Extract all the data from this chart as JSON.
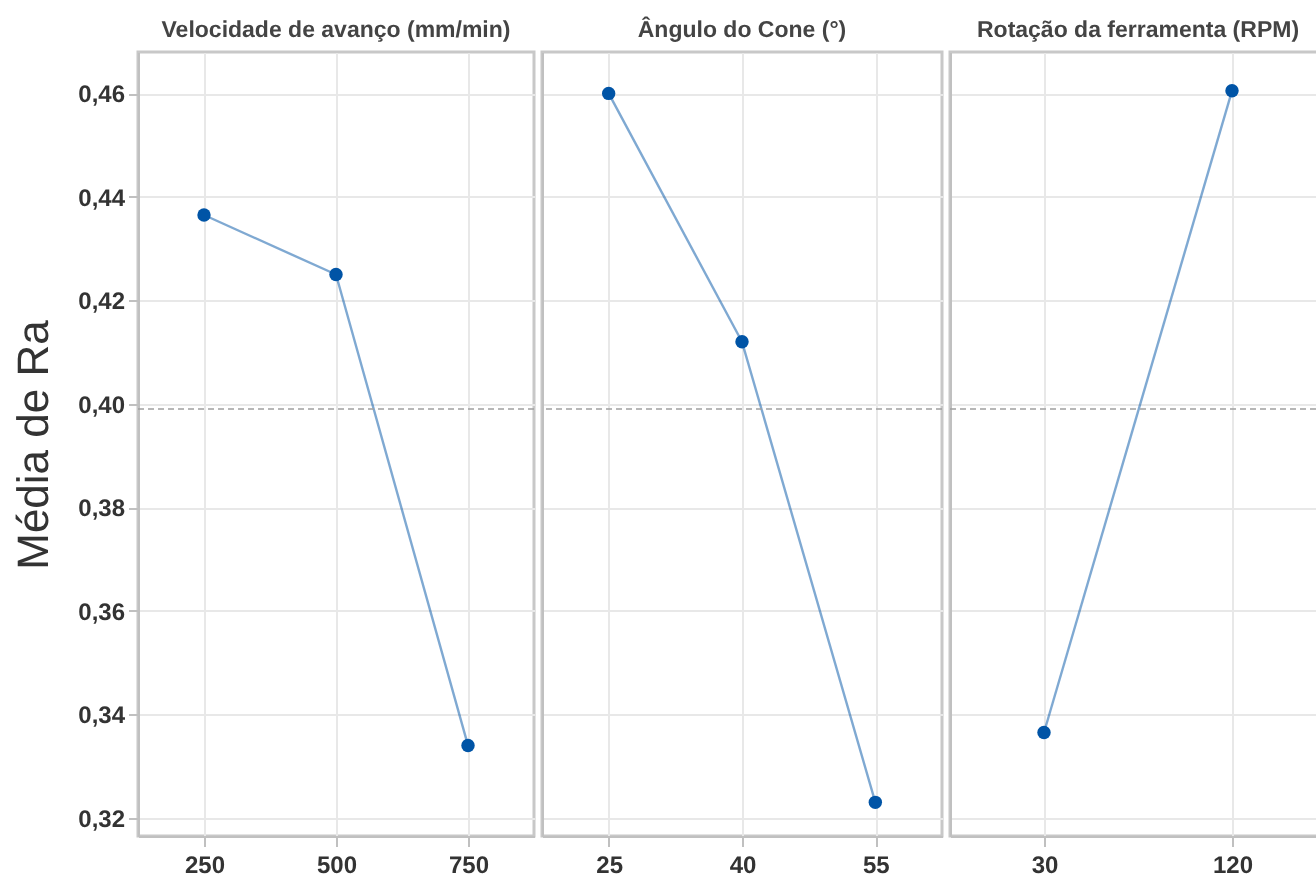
{
  "chart_data": [
    {
      "type": "line",
      "title": "Velocidade de avanço (mm/min)",
      "ylabel": "Média de Ra",
      "categories": [
        "250",
        "500",
        "750"
      ],
      "series": [
        {
          "color": "#0054a6",
          "values": [
            0.4365,
            0.425,
            0.334
          ]
        }
      ],
      "ylim": [
        0.3165,
        0.468
      ],
      "yticks": [
        {
          "value": 0.32,
          "label": "0,32"
        },
        {
          "value": 0.34,
          "label": "0,34"
        },
        {
          "value": 0.36,
          "label": "0,36"
        },
        {
          "value": 0.38,
          "label": "0,38"
        },
        {
          "value": 0.4,
          "label": "0,40"
        },
        {
          "value": 0.42,
          "label": "0,42"
        },
        {
          "value": 0.44,
          "label": "0,44"
        },
        {
          "value": 0.46,
          "label": "0,46"
        }
      ],
      "ref_lines": [
        {
          "axis": "y",
          "value": 0.399,
          "color": "#a0a0a0",
          "line_style": "dashed"
        }
      ],
      "grid": true,
      "marker": "circle"
    },
    {
      "type": "line",
      "title": "Ângulo do Cone (°)",
      "categories": [
        "25",
        "40",
        "55"
      ],
      "series": [
        {
          "color": "#0054a6",
          "values": [
            0.46,
            0.412,
            0.323
          ]
        }
      ],
      "ylim": [
        0.3165,
        0.468
      ],
      "yticks": [
        {
          "value": 0.32,
          "label": null
        },
        {
          "value": 0.34,
          "label": null
        },
        {
          "value": 0.36,
          "label": null
        },
        {
          "value": 0.38,
          "label": null
        },
        {
          "value": 0.4,
          "label": null
        },
        {
          "value": 0.42,
          "label": null
        },
        {
          "value": 0.44,
          "label": null
        },
        {
          "value": 0.46,
          "label": null
        }
      ],
      "tick_labels": "x",
      "ref_lines": [
        {
          "axis": "y",
          "value": 0.399,
          "color": "#a0a0a0",
          "line_style": "dashed"
        }
      ],
      "grid": true,
      "marker": "circle"
    },
    {
      "type": "line",
      "title": "Rotação da ferramenta (RPM)",
      "categories": [
        "30",
        "120"
      ],
      "series": [
        {
          "color": "#0054a6",
          "values": [
            0.3365,
            0.4605
          ]
        }
      ],
      "ylim": [
        0.3165,
        0.468
      ],
      "yticks": [
        {
          "value": 0.32,
          "label": null
        },
        {
          "value": 0.34,
          "label": null
        },
        {
          "value": 0.36,
          "label": null
        },
        {
          "value": 0.38,
          "label": null
        },
        {
          "value": 0.4,
          "label": null
        },
        {
          "value": 0.42,
          "label": null
        },
        {
          "value": 0.44,
          "label": null
        },
        {
          "value": 0.46,
          "label": null
        }
      ],
      "tick_labels": "x",
      "ref_lines": [
        {
          "axis": "y",
          "value": 0.399,
          "color": "#a0a0a0",
          "line_style": "dashed"
        }
      ],
      "grid": true,
      "marker": "circle"
    }
  ]
}
